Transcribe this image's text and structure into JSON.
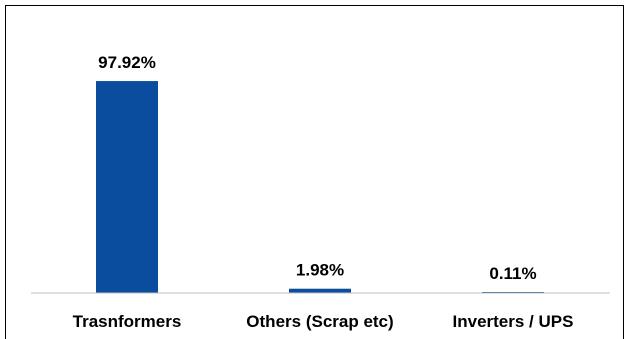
{
  "chart_data": {
    "type": "bar",
    "title": "",
    "xlabel": "",
    "ylabel": "",
    "categories": [
      "Trasnformers",
      "Others (Scrap etc)",
      "Inverters / UPS"
    ],
    "values": [
      97.92,
      1.98,
      0.11
    ],
    "data_labels": [
      "97.92%",
      "1.98%",
      "0.11%"
    ],
    "ylim": [
      0,
      100
    ],
    "grid": false,
    "legend": "none",
    "colors": {
      "bar": "#0A4D9E",
      "axis": "#BFBFBF",
      "text": "#000000",
      "border": "#000000"
    }
  }
}
